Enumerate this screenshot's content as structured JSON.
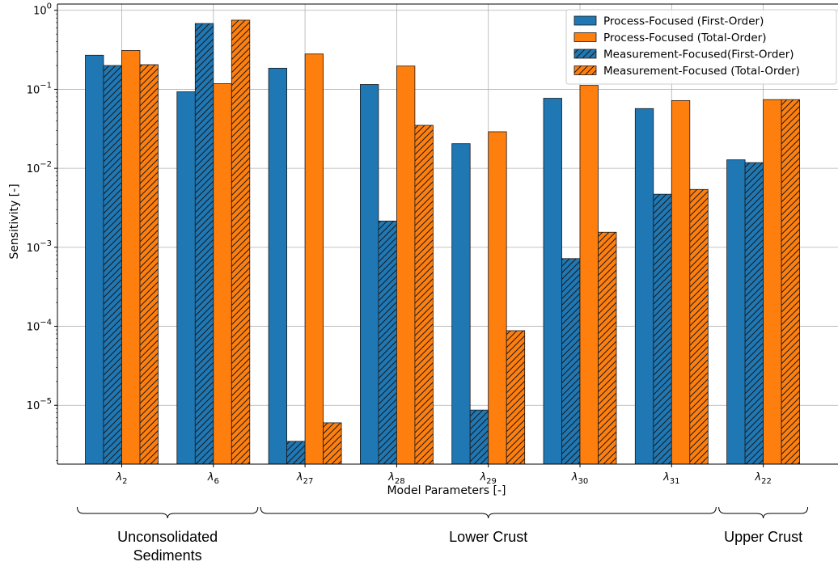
{
  "chart_data": {
    "type": "bar",
    "title": "",
    "xlabel": "Model Parameters [-]",
    "ylabel": "Sensitivity [-]",
    "yscale": "log",
    "ylim": [
      1.8e-06,
      1.2
    ],
    "grid": true,
    "legend_position": "top-right",
    "categories": [
      {
        "main": "λ",
        "sub": "2"
      },
      {
        "main": "λ",
        "sub": "6"
      },
      {
        "main": "λ",
        "sub": "27"
      },
      {
        "main": "λ",
        "sub": "28"
      },
      {
        "main": "λ",
        "sub": "29"
      },
      {
        "main": "λ",
        "sub": "30"
      },
      {
        "main": "λ",
        "sub": "31"
      },
      {
        "main": "λ",
        "sub": "22"
      }
    ],
    "yticks": [
      {
        "base": "10",
        "exp": "0",
        "value": 1
      },
      {
        "base": "10",
        "exp": "−1",
        "value": 0.1
      },
      {
        "base": "10",
        "exp": "−2",
        "value": 0.01
      },
      {
        "base": "10",
        "exp": "−3",
        "value": 0.001
      },
      {
        "base": "10",
        "exp": "−4",
        "value": 0.0001
      },
      {
        "base": "10",
        "exp": "−5",
        "value": 1e-05
      }
    ],
    "series": [
      {
        "name": "Process-Focused (First-Order)",
        "color": "#1f77b4",
        "hatch": false,
        "values": [
          0.27,
          0.093,
          0.185,
          0.115,
          0.0205,
          0.077,
          0.057,
          0.0128
        ]
      },
      {
        "name": "Measurement-Focused(First-Order)",
        "color": "#1f77b4",
        "hatch": true,
        "values": [
          0.2,
          0.68,
          3.5e-06,
          0.00215,
          8.7e-06,
          0.00072,
          0.0047,
          0.0118
        ]
      },
      {
        "name": "Process-Focused (Total-Order)",
        "color": "#ff7f0e",
        "hatch": false,
        "values": [
          0.31,
          0.118,
          0.28,
          0.197,
          0.029,
          0.112,
          0.072,
          0.074
        ]
      },
      {
        "name": "Measurement-Focused (Total-Order)",
        "color": "#ff7f0e",
        "hatch": true,
        "values": [
          0.205,
          0.75,
          6e-06,
          0.035,
          8.8e-05,
          0.00155,
          0.0054,
          0.074
        ]
      }
    ],
    "legend_order": [
      0,
      2,
      1,
      3
    ],
    "groups": [
      {
        "label_lines": [
          "Unconsolidated",
          "Sediments"
        ],
        "from": 0,
        "to": 1
      },
      {
        "label_lines": [
          "Lower Crust"
        ],
        "from": 2,
        "to": 6
      },
      {
        "label_lines": [
          "Upper Crust"
        ],
        "from": 7,
        "to": 7
      }
    ]
  }
}
